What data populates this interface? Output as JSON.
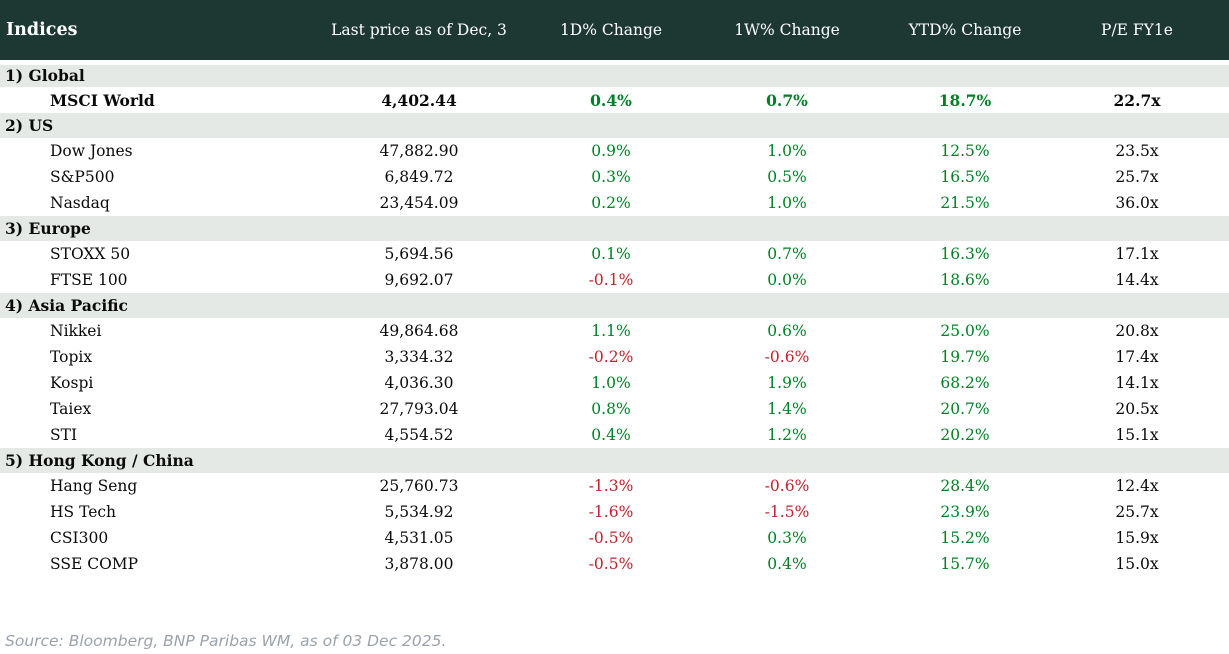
{
  "table": {
    "title": "Indices",
    "columns": [
      "Indices",
      "Last price as of Dec, 3",
      "1D% Change",
      "1W% Change",
      "YTD% Change",
      "P/E FY1e"
    ],
    "sections": [
      {
        "label": "1) Global",
        "rows": [
          {
            "name": "MSCI World",
            "price": "4,402.44",
            "d1": "0.4%",
            "w1": "0.7%",
            "ytd": "18.7%",
            "pe": "22.7x",
            "bold": true
          }
        ]
      },
      {
        "label": "2) US",
        "rows": [
          {
            "name": "Dow Jones",
            "price": "47,882.90",
            "d1": "0.9%",
            "w1": "1.0%",
            "ytd": "12.5%",
            "pe": "23.5x"
          },
          {
            "name": "S&P500",
            "price": "6,849.72",
            "d1": "0.3%",
            "w1": "0.5%",
            "ytd": "16.5%",
            "pe": "25.7x"
          },
          {
            "name": "Nasdaq",
            "price": "23,454.09",
            "d1": "0.2%",
            "w1": "1.0%",
            "ytd": "21.5%",
            "pe": "36.0x"
          }
        ]
      },
      {
        "label": "3) Europe",
        "rows": [
          {
            "name": "STOXX 50",
            "price": "5,694.56",
            "d1": "0.1%",
            "w1": "0.7%",
            "ytd": "16.3%",
            "pe": "17.1x"
          },
          {
            "name": "FTSE 100",
            "price": "9,692.07",
            "d1": "-0.1%",
            "w1": "0.0%",
            "ytd": "18.6%",
            "pe": "14.4x"
          }
        ]
      },
      {
        "label": "4) Asia Pacific",
        "rows": [
          {
            "name": "Nikkei",
            "price": "49,864.68",
            "d1": "1.1%",
            "w1": "0.6%",
            "ytd": "25.0%",
            "pe": "20.8x"
          },
          {
            "name": "Topix",
            "price": "3,334.32",
            "d1": "-0.2%",
            "w1": "-0.6%",
            "ytd": "19.7%",
            "pe": "17.4x"
          },
          {
            "name": "Kospi",
            "price": "4,036.30",
            "d1": "1.0%",
            "w1": "1.9%",
            "ytd": "68.2%",
            "pe": "14.1x"
          },
          {
            "name": "Taiex",
            "price": "27,793.04",
            "d1": "0.8%",
            "w1": "1.4%",
            "ytd": "20.7%",
            "pe": "20.5x"
          },
          {
            "name": "STI",
            "price": "4,554.52",
            "d1": "0.4%",
            "w1": "1.2%",
            "ytd": "20.2%",
            "pe": "15.1x"
          }
        ]
      },
      {
        "label": "5) Hong Kong / China",
        "rows": [
          {
            "name": "Hang Seng",
            "price": "25,760.73",
            "d1": "-1.3%",
            "w1": "-0.6%",
            "ytd": "28.4%",
            "pe": "12.4x"
          },
          {
            "name": "HS Tech",
            "price": "5,534.92",
            "d1": "-1.6%",
            "w1": "-1.5%",
            "ytd": "23.9%",
            "pe": "25.7x"
          },
          {
            "name": "CSI300",
            "price": "4,531.05",
            "d1": "-0.5%",
            "w1": "0.3%",
            "ytd": "15.2%",
            "pe": "15.9x"
          },
          {
            "name": "SSE COMP",
            "price": "3,878.00",
            "d1": "-0.5%",
            "w1": "0.4%",
            "ytd": "15.7%",
            "pe": "15.0x"
          }
        ]
      }
    ]
  },
  "source": "Source: Bloomberg, BNP Paribas WM, as of 03 Dec 2025.",
  "colors": {
    "header_bg": "#1d3833",
    "band_bg": "#e4e9e5",
    "positive": "#008125",
    "negative": "#c2222b",
    "text": "#0a0a0a",
    "source": "#9aa3ac",
    "page_bg": "#ffffff"
  }
}
